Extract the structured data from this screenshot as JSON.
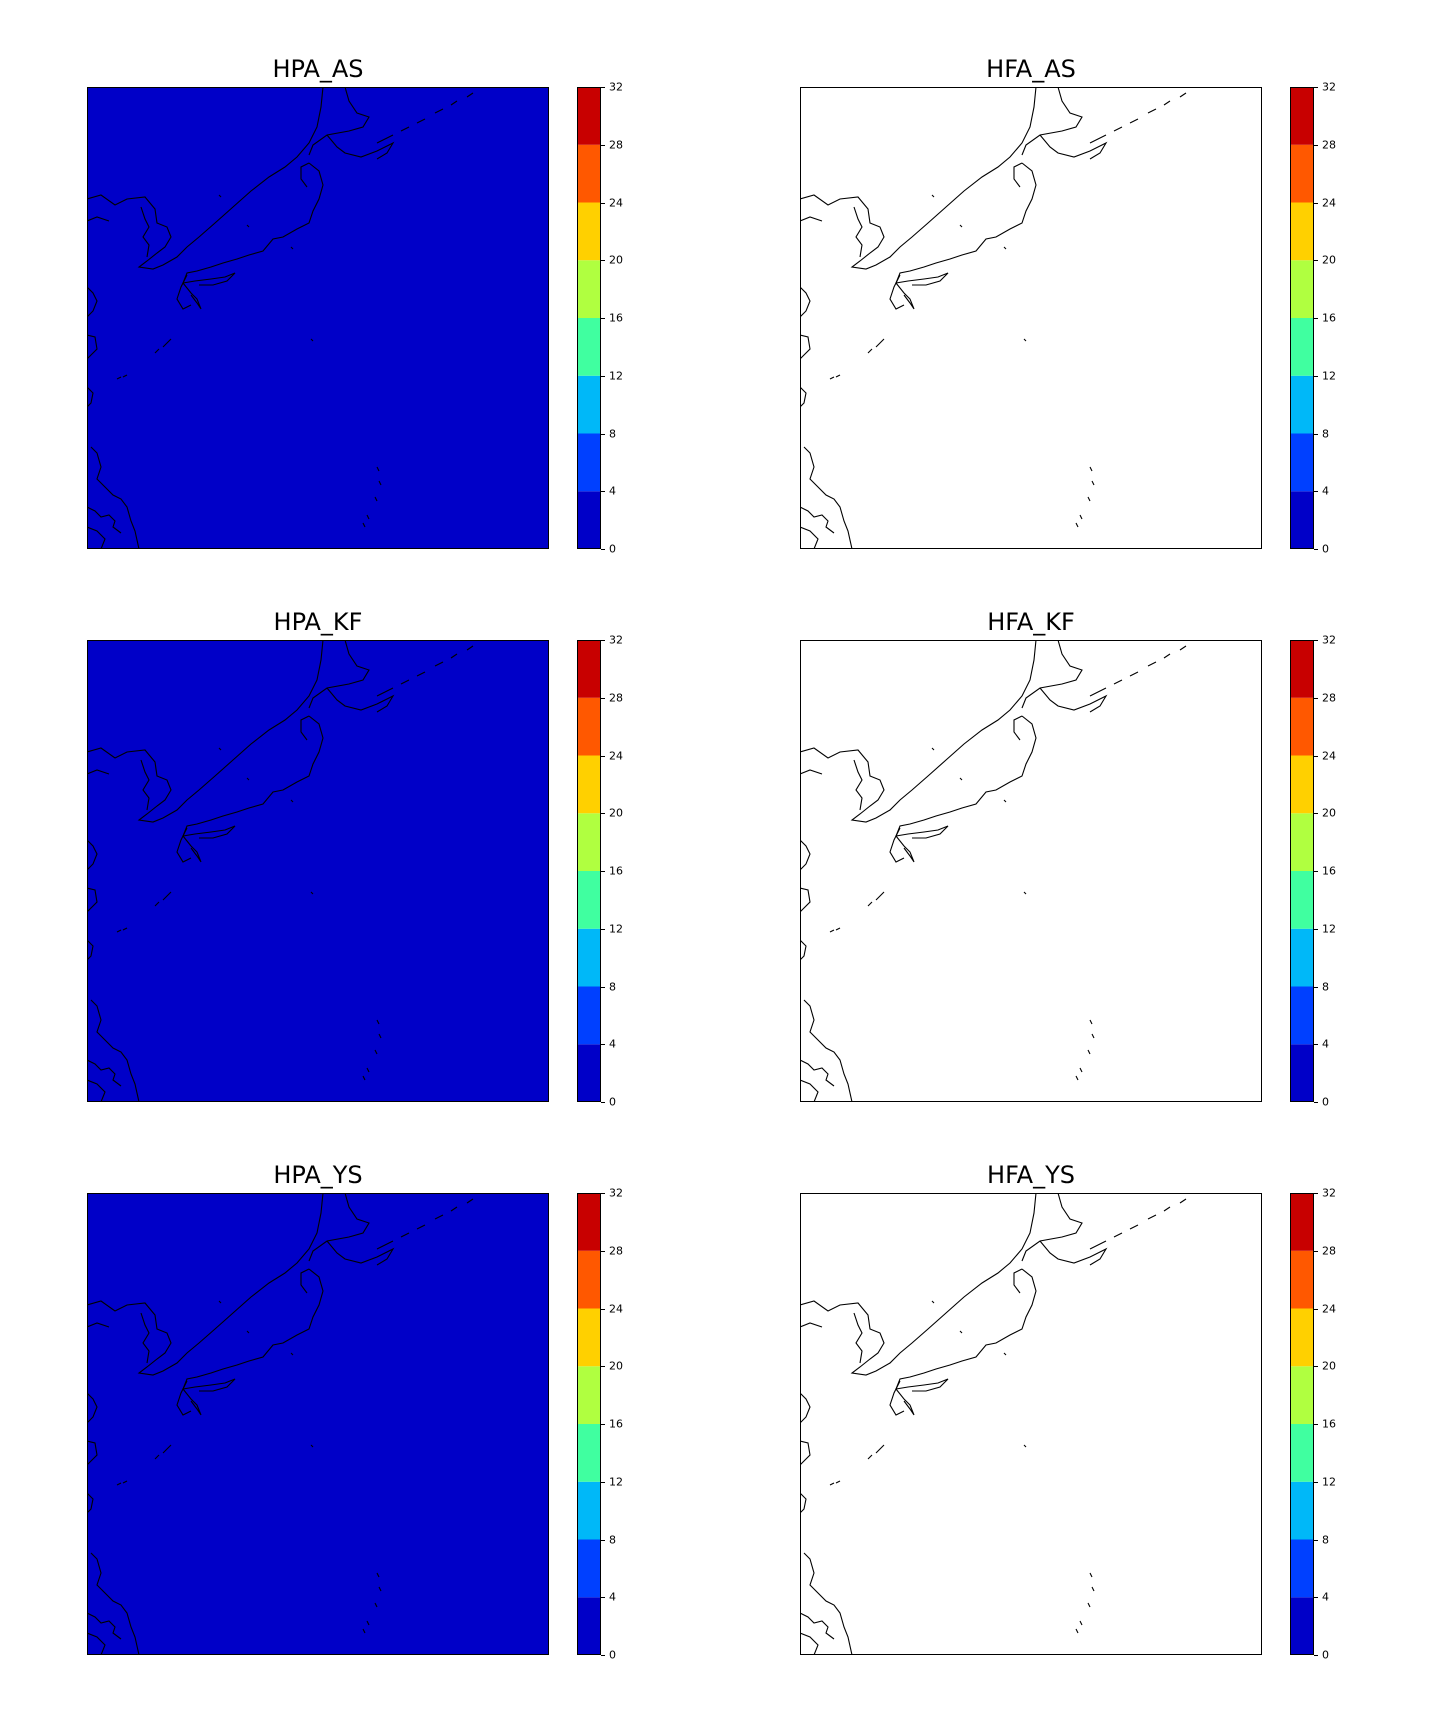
{
  "colorbar": {
    "ticks": [
      "0",
      "4",
      "8",
      "12",
      "16",
      "20",
      "24",
      "28",
      "32"
    ],
    "levels": [
      0,
      4,
      8,
      12,
      16,
      20,
      24,
      28,
      32
    ],
    "colors": [
      "#0000c8",
      "#0040ff",
      "#00b8f8",
      "#40ffa0",
      "#b0ff40",
      "#ffd000",
      "#ff5800",
      "#c80000"
    ]
  },
  "panels": [
    {
      "title": "HPA_AS",
      "fill": "#0000c8"
    },
    {
      "title": "HFA_AS",
      "fill": "#ffffff"
    },
    {
      "title": "HPA_KF",
      "fill": "#0000c8"
    },
    {
      "title": "HFA_KF",
      "fill": "#ffffff"
    },
    {
      "title": "HPA_YS",
      "fill": "#0000c8"
    },
    {
      "title": "HFA_YS",
      "fill": "#ffffff"
    }
  ]
}
